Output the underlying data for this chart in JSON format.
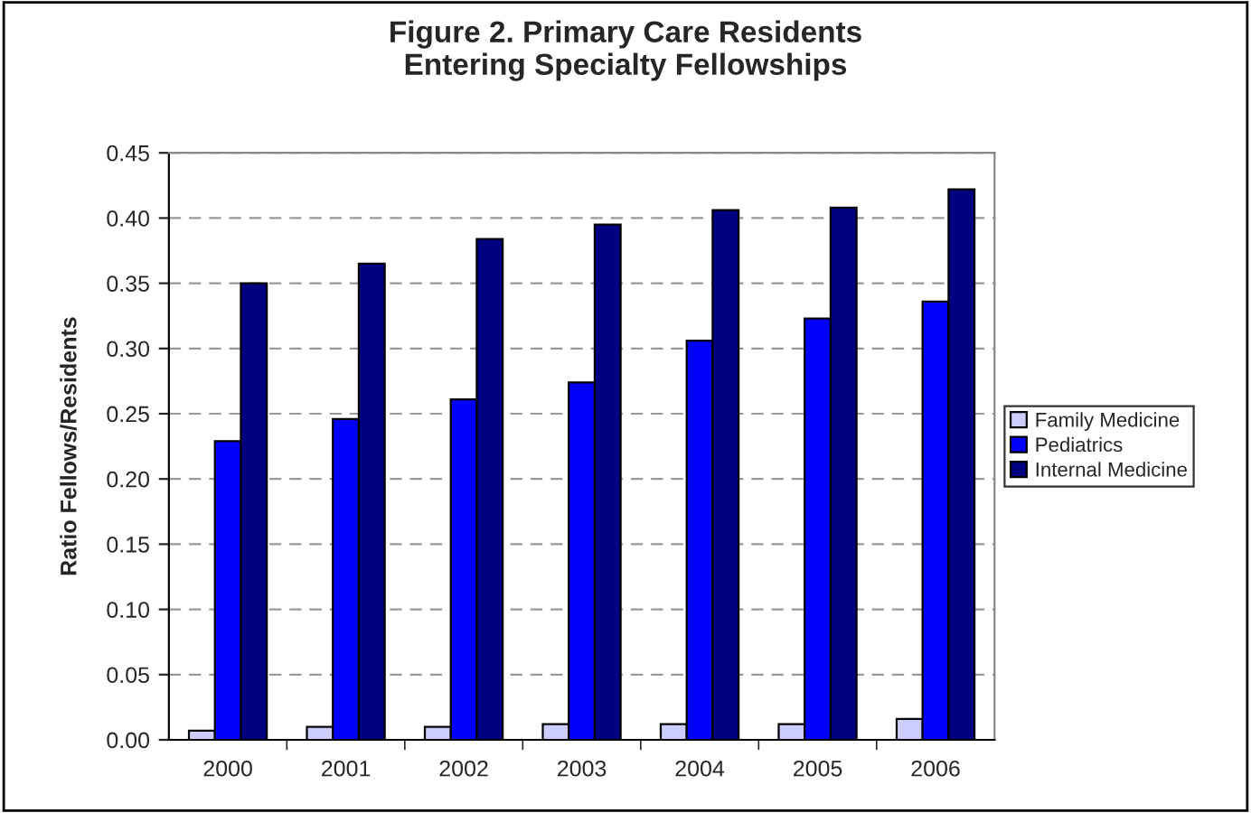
{
  "chart_data": {
    "type": "bar",
    "title": "Figure 2. Primary Care Residents\nEntering Specialty Fellowships",
    "ylabel": "Ratio Fellows/Residents",
    "categories": [
      "2000",
      "2001",
      "2002",
      "2003",
      "2004",
      "2005",
      "2006"
    ],
    "series": [
      {
        "name": "Family Medicine",
        "color": "#ccccff",
        "values": [
          0.007,
          0.01,
          0.01,
          0.012,
          0.012,
          0.012,
          0.016
        ]
      },
      {
        "name": "Pediatrics",
        "color": "#0000ff",
        "values": [
          0.229,
          0.246,
          0.261,
          0.274,
          0.306,
          0.323,
          0.336
        ]
      },
      {
        "name": "Internal Medicine",
        "color": "#000080",
        "values": [
          0.35,
          0.365,
          0.384,
          0.395,
          0.406,
          0.408,
          0.422
        ]
      }
    ],
    "ylim": [
      0,
      0.45
    ],
    "yticks": [
      {
        "value": 0,
        "label": "0.00"
      },
      {
        "value": 0.05,
        "label": "0.05"
      },
      {
        "value": 0.1,
        "label": "0.10"
      },
      {
        "value": 0.15,
        "label": "0.15"
      },
      {
        "value": 0.2,
        "label": "0.20"
      },
      {
        "value": 0.25,
        "label": "0.25"
      },
      {
        "value": 0.3,
        "label": "0.30"
      },
      {
        "value": 0.35,
        "label": "0.35"
      },
      {
        "value": 0.4,
        "label": "0.40"
      },
      {
        "value": 0.45,
        "label": "0.45"
      }
    ],
    "grid": "y",
    "legend": "right"
  }
}
